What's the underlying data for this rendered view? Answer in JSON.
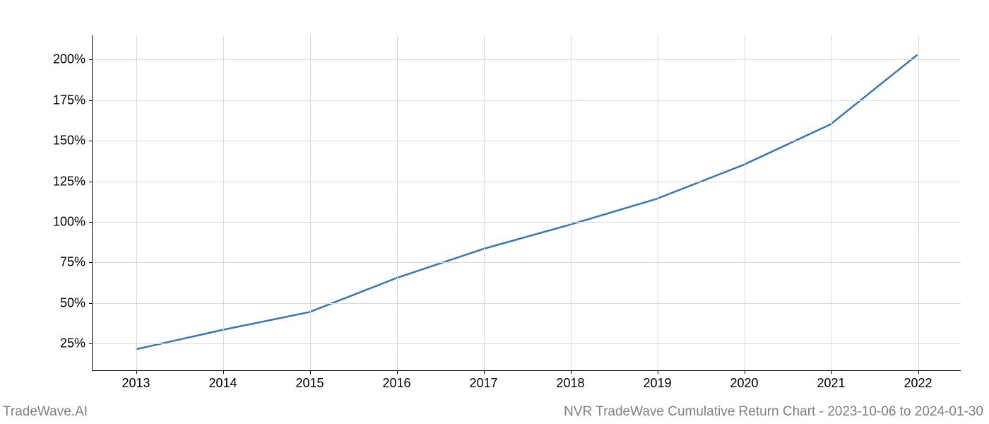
{
  "chart": {
    "type": "line",
    "background_color": "#ffffff",
    "grid_color": "#d9d9d9",
    "axis_color": "#000000",
    "line_color": "#3a76af",
    "line_width": 2.5,
    "tick_label_fontsize": 18,
    "tick_label_color": "#000000",
    "x_categories": [
      "2013",
      "2014",
      "2015",
      "2016",
      "2017",
      "2018",
      "2019",
      "2020",
      "2021",
      "2022"
    ],
    "y_ticks": [
      25,
      50,
      75,
      100,
      125,
      150,
      175,
      200
    ],
    "y_tick_labels": [
      "25%",
      "50%",
      "75%",
      "100%",
      "125%",
      "150%",
      "175%",
      "200%"
    ],
    "xlim": [
      -0.5,
      9.5
    ],
    "ylim": [
      8,
      215
    ],
    "values": [
      21,
      33,
      44,
      65,
      83,
      98,
      114,
      135,
      160,
      203
    ]
  },
  "footer": {
    "left": "TradeWave.AI",
    "right": "NVR TradeWave Cumulative Return Chart - 2023-10-06 to 2024-01-30",
    "fontsize": 19,
    "color": "#7f7f7f"
  }
}
